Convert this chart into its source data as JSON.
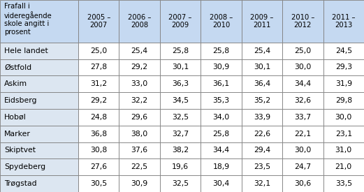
{
  "header_col": "Frafall i\nvideregående\nskole angitt i\nprosent",
  "columns": [
    "2005 –\n2007",
    "2006 –\n2008",
    "2007 –\n2009",
    "2008 –\n2010",
    "2009 –\n2011",
    "2010 –\n2012",
    "2011 –\n2013"
  ],
  "rows": [
    {
      "label": "Hele landet",
      "values": [
        25.0,
        25.4,
        25.8,
        25.8,
        25.4,
        25.0,
        24.5
      ]
    },
    {
      "label": "Østfold",
      "values": [
        27.8,
        29.2,
        30.1,
        30.9,
        30.1,
        30.0,
        29.3
      ]
    },
    {
      "label": "Askim",
      "values": [
        31.2,
        33.0,
        36.3,
        36.1,
        36.4,
        34.4,
        31.9
      ]
    },
    {
      "label": "Eidsberg",
      "values": [
        29.2,
        32.2,
        34.5,
        35.3,
        35.2,
        32.6,
        29.8
      ]
    },
    {
      "label": "Hobøl",
      "values": [
        24.8,
        29.6,
        32.5,
        34.0,
        33.9,
        33.7,
        30.0
      ]
    },
    {
      "label": "Marker",
      "values": [
        36.8,
        38.0,
        32.7,
        25.8,
        22.6,
        22.1,
        23.1
      ]
    },
    {
      "label": "Skiptvet",
      "values": [
        30.8,
        37.6,
        38.2,
        34.4,
        29.4,
        30.0,
        31.0
      ]
    },
    {
      "label": "Spydeberg",
      "values": [
        27.6,
        22.5,
        19.6,
        18.9,
        23.5,
        24.7,
        21.0
      ]
    },
    {
      "label": "Trøgstad",
      "values": [
        30.5,
        30.9,
        32.5,
        30.4,
        32.1,
        30.6,
        33.5
      ]
    }
  ],
  "header_bg": "#c5d9f1",
  "row_label_bg": "#dce6f1",
  "data_bg": "#ffffff",
  "border_color": "#7f7f7f",
  "text_color": "#000000",
  "header_fontsize": 7.2,
  "data_fontsize": 7.8,
  "label_fontsize": 7.8
}
